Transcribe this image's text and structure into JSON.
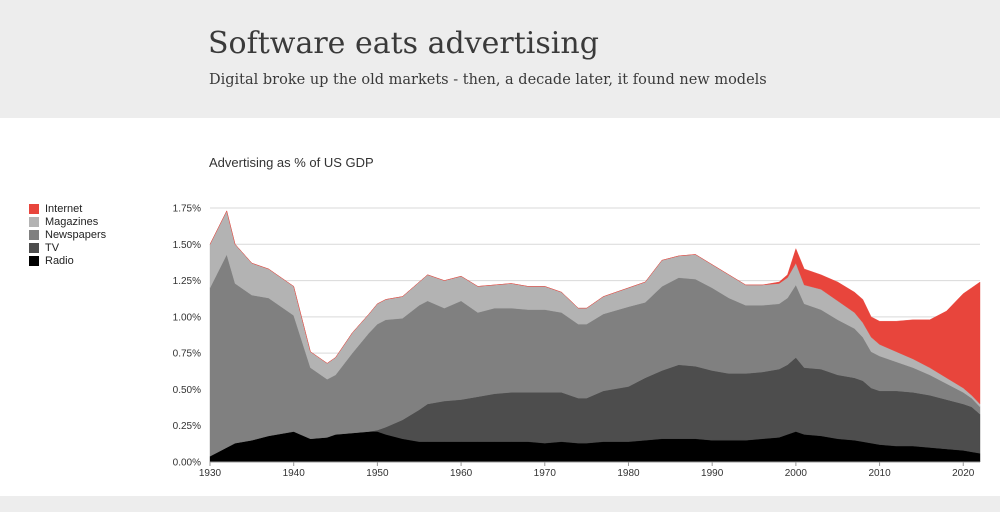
{
  "header": {
    "title": "Software eats advertising",
    "subtitle": "Digital broke up the old markets - then, a decade later, it found new models"
  },
  "chart_data": {
    "type": "area",
    "stacked": true,
    "title": "Advertising as % of US GDP",
    "xlabel": "",
    "ylabel": "",
    "xlim": [
      1930,
      2022
    ],
    "ylim": [
      0,
      1.75
    ],
    "y_ticks": [
      "0.00%",
      "0.25%",
      "0.50%",
      "0.75%",
      "1.00%",
      "1.25%",
      "1.50%",
      "1.75%"
    ],
    "x_ticks": [
      "1930",
      "1940",
      "1950",
      "1960",
      "1970",
      "1980",
      "1990",
      "2000",
      "2010",
      "2020"
    ],
    "legend_position": "left",
    "grid": true,
    "x": [
      1930,
      1932,
      1933,
      1935,
      1937,
      1940,
      1942,
      1944,
      1945,
      1947,
      1949,
      1950,
      1951,
      1953,
      1955,
      1956,
      1958,
      1960,
      1962,
      1964,
      1966,
      1968,
      1970,
      1972,
      1974,
      1975,
      1977,
      1980,
      1982,
      1984,
      1986,
      1988,
      1990,
      1992,
      1994,
      1996,
      1998,
      1999,
      2000,
      2001,
      2003,
      2005,
      2007,
      2008,
      2009,
      2010,
      2012,
      2014,
      2016,
      2018,
      2020,
      2021,
      2022
    ],
    "series": [
      {
        "name": "Radio",
        "color": "#000000",
        "values": [
          0.04,
          0.1,
          0.13,
          0.15,
          0.18,
          0.21,
          0.16,
          0.17,
          0.19,
          0.2,
          0.21,
          0.21,
          0.19,
          0.16,
          0.14,
          0.14,
          0.14,
          0.14,
          0.14,
          0.14,
          0.14,
          0.14,
          0.13,
          0.14,
          0.13,
          0.13,
          0.14,
          0.14,
          0.15,
          0.16,
          0.16,
          0.16,
          0.15,
          0.15,
          0.15,
          0.16,
          0.17,
          0.19,
          0.21,
          0.19,
          0.18,
          0.16,
          0.15,
          0.14,
          0.13,
          0.12,
          0.11,
          0.11,
          0.1,
          0.09,
          0.08,
          0.07,
          0.06
        ]
      },
      {
        "name": "TV",
        "color": "#4d4d4d",
        "values": [
          0,
          0,
          0,
          0,
          0,
          0,
          0,
          0,
          0,
          0,
          0,
          0.01,
          0.05,
          0.13,
          0.22,
          0.26,
          0.28,
          0.29,
          0.31,
          0.33,
          0.34,
          0.34,
          0.35,
          0.34,
          0.31,
          0.31,
          0.35,
          0.38,
          0.43,
          0.47,
          0.51,
          0.5,
          0.48,
          0.46,
          0.46,
          0.46,
          0.47,
          0.48,
          0.51,
          0.46,
          0.46,
          0.44,
          0.43,
          0.42,
          0.38,
          0.37,
          0.38,
          0.37,
          0.36,
          0.34,
          0.32,
          0.31,
          0.27
        ]
      },
      {
        "name": "Newspapers",
        "color": "#808080",
        "values": [
          1.16,
          1.33,
          1.1,
          1.0,
          0.95,
          0.8,
          0.49,
          0.4,
          0.41,
          0.55,
          0.68,
          0.73,
          0.74,
          0.7,
          0.72,
          0.71,
          0.64,
          0.68,
          0.58,
          0.59,
          0.58,
          0.57,
          0.57,
          0.55,
          0.51,
          0.51,
          0.53,
          0.55,
          0.52,
          0.58,
          0.6,
          0.6,
          0.57,
          0.52,
          0.47,
          0.46,
          0.45,
          0.46,
          0.5,
          0.44,
          0.41,
          0.38,
          0.34,
          0.3,
          0.25,
          0.24,
          0.2,
          0.17,
          0.14,
          0.11,
          0.08,
          0.06,
          0.05
        ]
      },
      {
        "name": "Magazines",
        "color": "#b3b3b3",
        "values": [
          0.3,
          0.3,
          0.27,
          0.22,
          0.2,
          0.2,
          0.11,
          0.11,
          0.12,
          0.14,
          0.13,
          0.14,
          0.14,
          0.15,
          0.16,
          0.18,
          0.19,
          0.17,
          0.18,
          0.16,
          0.17,
          0.16,
          0.16,
          0.14,
          0.11,
          0.11,
          0.12,
          0.13,
          0.14,
          0.18,
          0.15,
          0.17,
          0.16,
          0.16,
          0.14,
          0.14,
          0.14,
          0.14,
          0.15,
          0.13,
          0.14,
          0.13,
          0.11,
          0.1,
          0.1,
          0.08,
          0.07,
          0.06,
          0.05,
          0.04,
          0.03,
          0.02,
          0.02
        ]
      },
      {
        "name": "Internet",
        "color": "#e8453c",
        "values": [
          0,
          0,
          0,
          0,
          0,
          0,
          0,
          0,
          0,
          0,
          0,
          0,
          0,
          0,
          0,
          0,
          0,
          0,
          0,
          0,
          0,
          0,
          0,
          0,
          0,
          0,
          0,
          0,
          0,
          0,
          0,
          0,
          0,
          0,
          0,
          0,
          0.01,
          0.02,
          0.1,
          0.11,
          0.1,
          0.13,
          0.14,
          0.16,
          0.14,
          0.16,
          0.21,
          0.27,
          0.33,
          0.46,
          0.65,
          0.74,
          0.84
        ]
      }
    ]
  }
}
